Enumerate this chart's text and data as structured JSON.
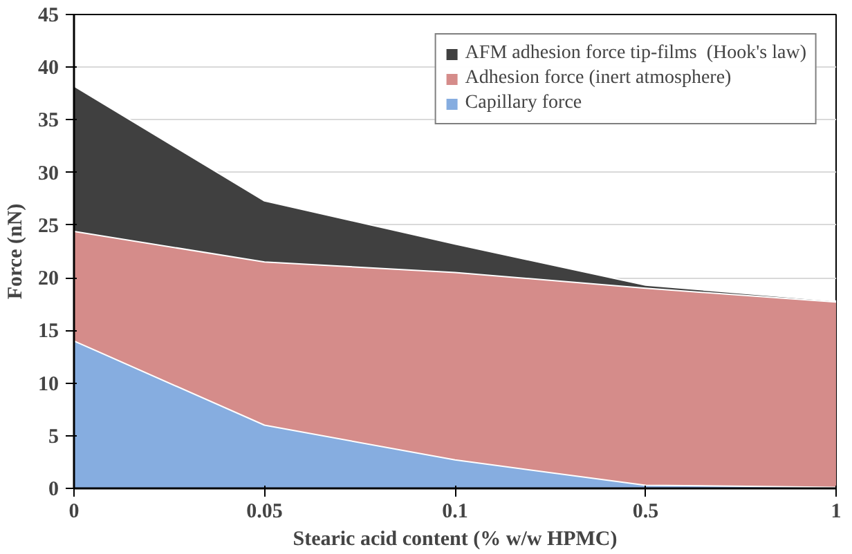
{
  "chart_data": {
    "type": "area",
    "xlabel": "Stearic acid content (% w/w HPMC)",
    "ylabel": "Force (nN)",
    "categories": [
      "0",
      "0.05",
      "0.1",
      "0.5",
      "1"
    ],
    "series": [
      {
        "name": "AFM adhesion force tip-films  (Hook's law)",
        "color": "#404040",
        "values": [
          38.2,
          27.3,
          23.2,
          19.3,
          17.8
        ]
      },
      {
        "name": "Adhesion force (inert atmosphere)",
        "color": "#d58c8a",
        "values": [
          24.4,
          21.5,
          20.5,
          19.0,
          17.7
        ]
      },
      {
        "name": "Capillary force",
        "color": "#86ade0",
        "values": [
          14.0,
          6.0,
          2.7,
          0.3,
          0.1
        ]
      }
    ],
    "ylim": [
      0,
      45
    ],
    "yticks": [
      0,
      5,
      10,
      15,
      20,
      25,
      30,
      35,
      40,
      45
    ],
    "grid": "y",
    "legend": "top right"
  }
}
